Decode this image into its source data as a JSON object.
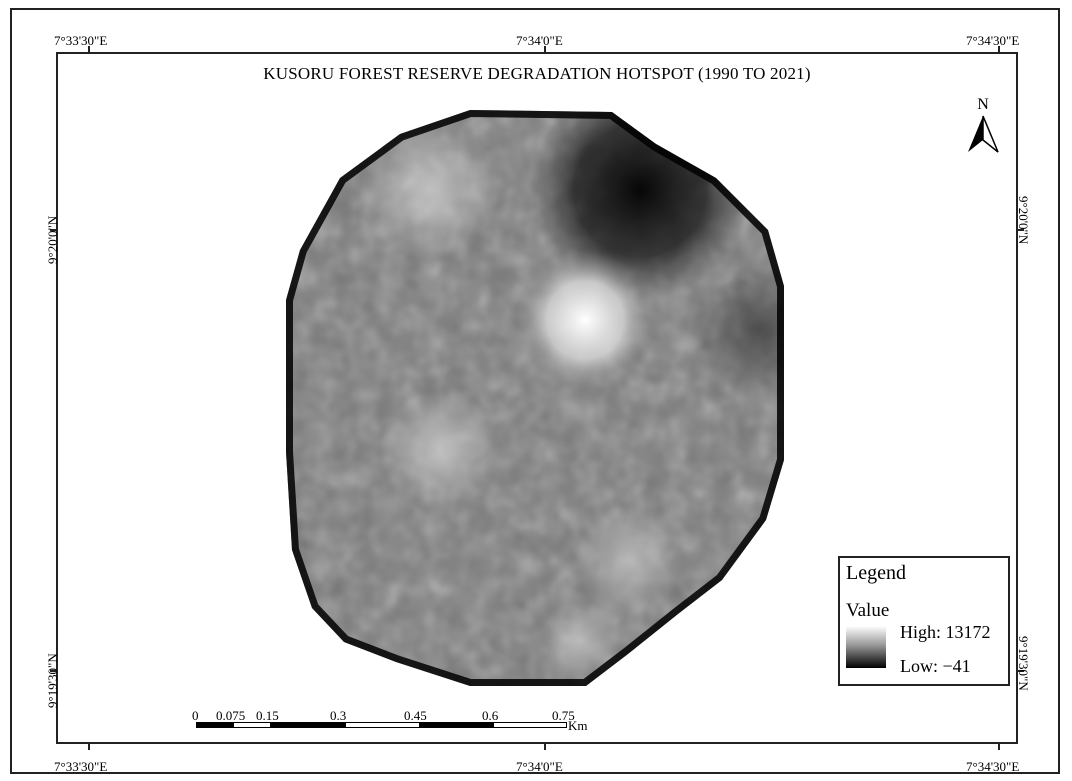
{
  "map": {
    "title": "KUSORU FOREST RESERVE DEGRADATION HOTSPOT (1990 TO 2021)",
    "coords": {
      "lon_left": "7°33'30\"E",
      "lon_mid": "7°34'0\"E",
      "lon_right": "7°34'30\"E",
      "lat_upper": "9°20'0\"N",
      "lat_lower": "9°19'30\"N"
    },
    "north_arrow": {
      "letter": "N",
      "icon": "north-arrow-icon"
    },
    "legend": {
      "title": "Legend",
      "subtitle": "Value",
      "high": "High: 13172",
      "low": "Low: −41",
      "ramp_colors": [
        "#ffffff",
        "#000000"
      ]
    },
    "scale": {
      "labels": [
        "0",
        "0.075",
        "0.15",
        "0.3",
        "0.45",
        "0.6",
        "0.75"
      ],
      "unit": "Km"
    },
    "colors": {
      "frame": "#222222",
      "background": "#ffffff"
    }
  }
}
